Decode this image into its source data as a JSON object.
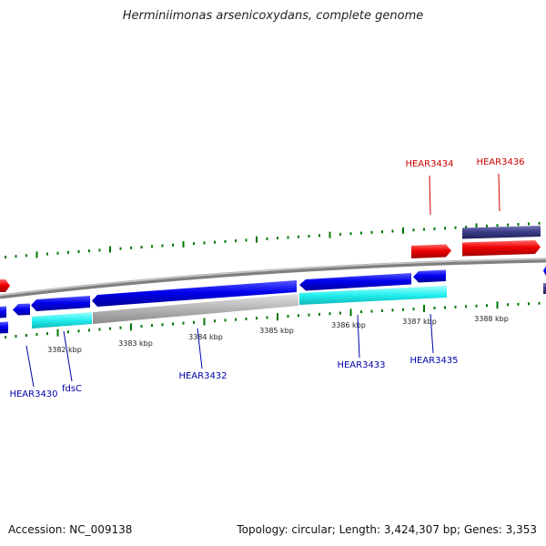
{
  "title": "Herminiimonas arsenicoxydans, complete genome",
  "accession": "Accession: NC_009138",
  "summary": "Topology: circular; Length: 3,424,307 bp; Genes: 3,353",
  "colors": {
    "forward_cds": "#0000ee",
    "forward_cds_dark": "#0000aa",
    "rna_red": "#ee0000",
    "slate": "#3c3c8a",
    "cyan": "#22eeee",
    "gray_feature": "#b4b4b4",
    "backbone": "#888888",
    "gc_tick": "#007700",
    "label_blue": "#0000aa",
    "label_red": "#cc0000"
  },
  "scale_labels": [
    {
      "text": "3382 kbp"
    },
    {
      "text": "3383 kbp"
    },
    {
      "text": "3384 kbp"
    },
    {
      "text": "3385 kbp"
    },
    {
      "text": "3386 kbp"
    },
    {
      "text": "3387 kbp"
    },
    {
      "text": "3388 kbp"
    }
  ],
  "gene_labels": [
    {
      "text": "HEAR3430",
      "color": "blue"
    },
    {
      "text": "fdsC",
      "color": "blue"
    },
    {
      "text": "HEAR3432",
      "color": "blue"
    },
    {
      "text": "HEAR3433",
      "color": "blue"
    },
    {
      "text": "HEAR3435",
      "color": "blue"
    },
    {
      "text": "HEAR3434",
      "color": "red"
    },
    {
      "text": "HEAR3436",
      "color": "red"
    }
  ]
}
